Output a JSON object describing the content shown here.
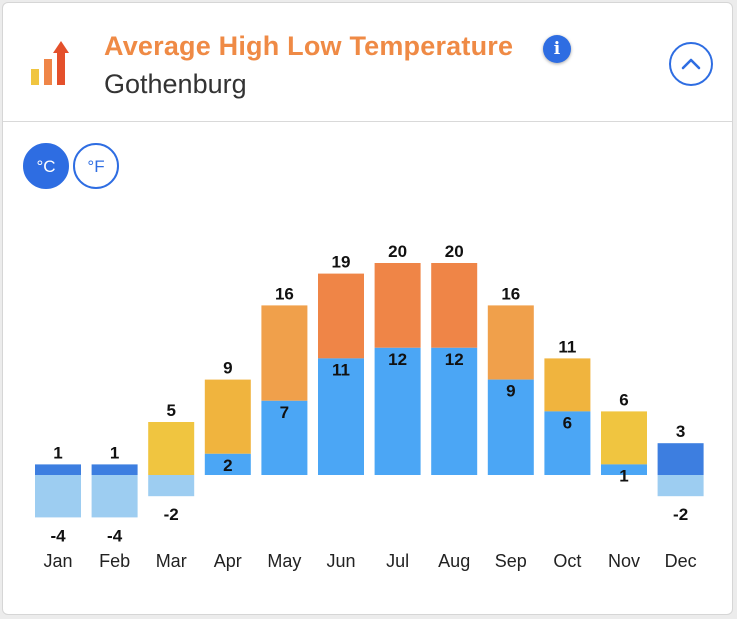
{
  "header": {
    "title": "Average High Low Temperature",
    "subtitle": "Gothenburg",
    "logo_icon": "bar-chart-arrow-icon",
    "info_icon": "info-icon",
    "info_glyph": "i",
    "collapse_icon": "chevron-up-icon"
  },
  "units": {
    "celsius_label": "°C",
    "fahrenheit_label": "°F",
    "selected": "°C"
  },
  "colors": {
    "accent": "#2e6de2",
    "title": "#ef8a45",
    "low": "#4ba6f5",
    "low_negative": "#9dcdf1",
    "high_cold": "#3d7ee0",
    "high_mild": "#f0c540",
    "high_warm": "#f0b43e",
    "high_hot": "#f0a04b",
    "high_very_hot": "#ef8547"
  },
  "chart_data": {
    "type": "bar",
    "categories": [
      "Jan",
      "Feb",
      "Mar",
      "Apr",
      "May",
      "Jun",
      "Jul",
      "Aug",
      "Sep",
      "Oct",
      "Nov",
      "Dec"
    ],
    "series": [
      {
        "values": [
          1,
          1,
          5,
          9,
          16,
          19,
          20,
          20,
          16,
          11,
          6,
          3
        ]
      },
      {
        "values": [
          -4,
          -4,
          -2,
          2,
          7,
          11,
          12,
          12,
          9,
          6,
          1,
          -2
        ]
      }
    ],
    "xlabel": "",
    "ylabel": "",
    "grid": false,
    "legend": "none"
  }
}
